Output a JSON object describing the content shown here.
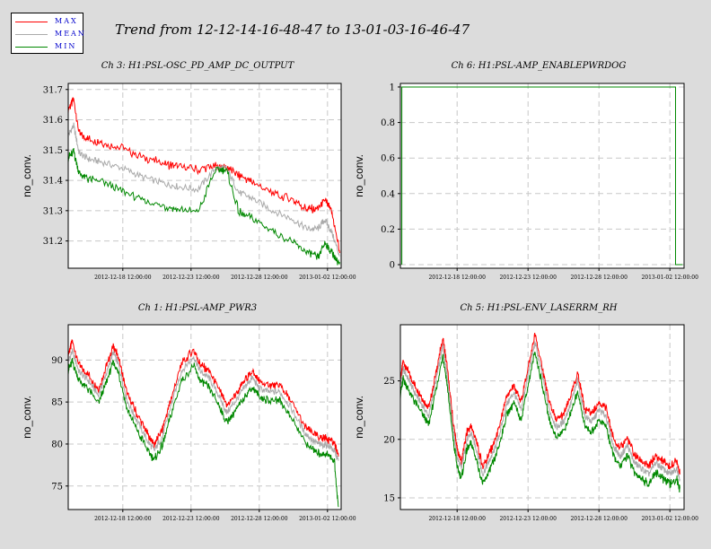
{
  "title": "Trend from 12-12-14-16-48-47 to 13-01-03-16-46-47",
  "legend": [
    {
      "label": "MAX",
      "color": "#ff0000"
    },
    {
      "label": "MEAN",
      "color": "#aaaaaa"
    },
    {
      "label": "MIN",
      "color": "#008800"
    }
  ],
  "chart_data": [
    {
      "type": "line",
      "title": "Ch 3: H1:PSL-OSC_PD_AMP_DC_OUTPUT",
      "ylabel": "no_conv.",
      "xlabel": "",
      "x_ticks": [
        "2012-12-18 12:00:00",
        "2012-12-23 12:00:00",
        "2012-12-28 12:00:00",
        "2013-01-02 12:00:00"
      ],
      "y_ticks": [
        31.2,
        31.3,
        31.4,
        31.5,
        31.6,
        31.7
      ],
      "ylim": [
        31.11,
        31.72
      ],
      "x_days": [
        0,
        0.4,
        0.8,
        1.5,
        2.5,
        4,
        5.5,
        7,
        8,
        9.5,
        10.8,
        11.6,
        12.5,
        13.5,
        15,
        16.5,
        17.5,
        18.3,
        18.8,
        19.3,
        19.9
      ],
      "series": [
        {
          "name": "MAX",
          "values": [
            31.63,
            31.66,
            31.55,
            31.53,
            31.52,
            31.5,
            31.47,
            31.45,
            31.44,
            31.43,
            31.44,
            31.44,
            31.41,
            31.39,
            31.35,
            31.33,
            31.3,
            31.3,
            31.33,
            31.29,
            31.16
          ]
        },
        {
          "name": "MEAN",
          "values": [
            31.55,
            31.58,
            31.49,
            31.47,
            31.46,
            31.44,
            31.41,
            31.39,
            31.38,
            31.37,
            31.44,
            31.44,
            31.36,
            31.34,
            31.3,
            31.27,
            31.24,
            31.24,
            31.27,
            31.23,
            31.15
          ]
        },
        {
          "name": "MIN",
          "values": [
            31.48,
            31.5,
            31.43,
            31.41,
            31.4,
            31.37,
            31.34,
            31.32,
            31.31,
            31.3,
            31.44,
            31.44,
            31.3,
            31.28,
            31.24,
            31.2,
            31.17,
            31.15,
            31.2,
            31.17,
            31.13
          ]
        }
      ]
    },
    {
      "type": "line",
      "title": "Ch 6: H1:PSL-AMP_ENABLEPWRDOG",
      "ylabel": "no_conv.",
      "xlabel": "",
      "x_ticks": [
        "2012-12-18 12:00:00",
        "2012-12-23 12:00:00",
        "2012-12-28 12:00:00",
        "2013-01-02 12:00:00"
      ],
      "y_ticks": [
        "0",
        "0.2",
        "0.4",
        "0.6",
        "0.8",
        "1"
      ],
      "ylim": [
        -0.02,
        1.02
      ],
      "x_days": [
        0.1,
        0.1,
        0.3,
        0.3,
        19.4,
        19.4,
        19.9
      ],
      "series": [
        {
          "name": "MIN",
          "values": [
            0,
            1,
            1,
            1,
            1,
            0,
            0
          ]
        }
      ]
    },
    {
      "type": "line",
      "title": "Ch 1: H1:PSL-AMP_PWR3",
      "ylabel": "no_conv.",
      "xlabel": "",
      "x_ticks": [
        "2012-12-18 12:00:00",
        "2012-12-23 12:00:00",
        "2012-12-28 12:00:00",
        "2013-01-02 12:00:00"
      ],
      "y_ticks": [
        75,
        80,
        85,
        90
      ],
      "ylim": [
        72.2,
        94.2
      ],
      "x_days": [
        0,
        0.3,
        0.8,
        1.5,
        2.2,
        2.8,
        3.3,
        3.7,
        4.3,
        5.0,
        5.8,
        6.3,
        6.9,
        7.5,
        8.3,
        9.2,
        9.7,
        10.3,
        11.0,
        11.6,
        12.3,
        13.0,
        13.5,
        14.0,
        14.7,
        15.5,
        16.3,
        17.3,
        18.0,
        18.5,
        19.0,
        19.5,
        19.8
      ],
      "series": [
        {
          "name": "MAX",
          "values": [
            90.5,
            92.0,
            89.2,
            88.0,
            86.3,
            89.0,
            91.5,
            90.0,
            85.8,
            83.5,
            81.0,
            79.8,
            81.5,
            85.0,
            89.3,
            91.0,
            89.2,
            88.5,
            86.5,
            84.3,
            85.8,
            87.5,
            88.5,
            87.2,
            86.8,
            86.8,
            85.0,
            82.0,
            81.0,
            80.5,
            80.5,
            79.8,
            78.5
          ]
        },
        {
          "name": "MEAN",
          "values": [
            89.8,
            91.0,
            88.6,
            87.5,
            85.8,
            88.4,
            90.9,
            89.4,
            85.2,
            82.9,
            80.4,
            79.2,
            80.9,
            84.4,
            88.7,
            90.4,
            88.6,
            87.9,
            85.9,
            83.7,
            85.2,
            86.9,
            87.9,
            86.6,
            86.2,
            86.2,
            84.4,
            81.4,
            80.3,
            79.9,
            79.9,
            79.2,
            78.0
          ]
        },
        {
          "name": "MIN",
          "values": [
            89.0,
            90.0,
            87.8,
            86.7,
            85.0,
            87.6,
            90.0,
            88.6,
            84.4,
            82.0,
            79.5,
            78.3,
            80.0,
            83.5,
            87.8,
            89.5,
            87.7,
            87.0,
            85.0,
            82.8,
            84.3,
            86.0,
            87.0,
            85.8,
            85.4,
            85.4,
            83.5,
            80.5,
            79.4,
            79.0,
            79.0,
            78.3,
            72.5
          ]
        }
      ]
    },
    {
      "type": "line",
      "title": "Ch 5: H1:PSL-ENV_LASERRM_RH",
      "ylabel": "no_conv.",
      "xlabel": "",
      "x_ticks": [
        "2012-12-18 12:00:00",
        "2012-12-23 12:00:00",
        "2012-12-28 12:00:00",
        "2013-01-02 12:00:00"
      ],
      "y_ticks": [
        15,
        20,
        25
      ],
      "ylim": [
        14.0,
        29.8
      ],
      "x_days": [
        0,
        0.2,
        0.5,
        1.0,
        1.5,
        2.0,
        2.5,
        3.0,
        3.3,
        3.7,
        4.0,
        4.3,
        4.7,
        5.0,
        5.4,
        5.8,
        6.2,
        6.6,
        7.0,
        7.5,
        8.0,
        8.5,
        9.0,
        9.5,
        10.0,
        10.5,
        11.0,
        11.5,
        12.0,
        12.5,
        13.0,
        13.5,
        14.0,
        14.5,
        15.0,
        15.5,
        16.0,
        16.5,
        17.0,
        17.5,
        18.0,
        18.5,
        19.0,
        19.5,
        19.7
      ],
      "series": [
        {
          "name": "MAX",
          "values": [
            25.0,
            26.5,
            25.8,
            24.5,
            23.5,
            22.5,
            25.5,
            28.5,
            26.0,
            21.5,
            19.0,
            18.0,
            20.5,
            21.0,
            19.5,
            17.5,
            18.5,
            19.5,
            21.0,
            23.5,
            24.5,
            23.0,
            26.0,
            28.8,
            26.0,
            23.0,
            21.5,
            22.0,
            23.5,
            25.5,
            22.5,
            22.0,
            23.0,
            22.5,
            20.0,
            19.0,
            20.0,
            18.5,
            18.0,
            17.5,
            18.5,
            18.0,
            17.5,
            18.0,
            17.0
          ]
        },
        {
          "name": "MEAN",
          "values": [
            24.6,
            26.0,
            25.3,
            24.0,
            23.0,
            22.0,
            25.0,
            28.0,
            25.5,
            21.0,
            18.5,
            17.5,
            20.0,
            20.5,
            19.0,
            17.0,
            18.0,
            19.0,
            20.5,
            23.0,
            24.0,
            22.5,
            25.5,
            28.3,
            25.5,
            22.5,
            21.0,
            21.5,
            23.0,
            25.0,
            22.0,
            21.5,
            22.5,
            22.0,
            19.5,
            18.5,
            19.5,
            18.0,
            17.5,
            17.0,
            18.0,
            17.5,
            17.0,
            17.5,
            16.6
          ]
        },
        {
          "name": "MIN",
          "values": [
            24.0,
            25.3,
            24.6,
            23.4,
            22.4,
            21.4,
            24.3,
            27.3,
            24.8,
            20.3,
            17.8,
            16.8,
            19.3,
            19.8,
            18.3,
            16.3,
            17.3,
            18.3,
            19.8,
            22.3,
            23.3,
            21.8,
            24.8,
            27.6,
            24.8,
            21.8,
            20.3,
            20.8,
            22.3,
            24.3,
            21.3,
            20.8,
            21.8,
            21.3,
            18.8,
            17.8,
            18.8,
            17.3,
            16.8,
            16.3,
            17.3,
            16.8,
            16.3,
            16.8,
            15.8
          ]
        }
      ]
    }
  ]
}
